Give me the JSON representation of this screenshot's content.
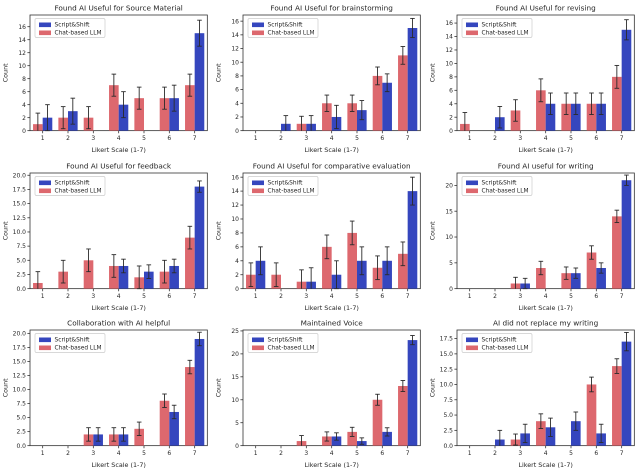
{
  "figure": {
    "xlabel": "Likert Scale (1-7)",
    "ylabel": "Count",
    "background": "#ffffff"
  },
  "colors": {
    "script_shift": "#3546be",
    "chat_llm": "#dd686e",
    "error_bar": "#2b2b2b",
    "axis": "#333333",
    "legend_border": "#cccccc"
  },
  "legend": {
    "entries": [
      "Script&Shift",
      "Chat-based LLM"
    ]
  },
  "chart_data": [
    {
      "type": "bar",
      "title": "Found AI Useful for Source Material",
      "xlabel": "Likert Scale (1-7)",
      "ylabel": "Count",
      "categories": [
        "1",
        "2",
        "3",
        "4",
        "5",
        "6",
        "7"
      ],
      "ylim": [
        0,
        17.8
      ],
      "yticks": [
        0,
        2,
        4,
        6,
        8,
        10,
        12,
        14,
        16
      ],
      "ytick_decimals": 0,
      "series": [
        {
          "name": "Script&Shift",
          "slot": 1,
          "values": [
            2,
            3,
            0,
            4,
            0,
            5,
            15
          ],
          "errors": [
            2,
            2,
            0,
            2,
            0,
            2,
            2
          ]
        },
        {
          "name": "Chat-based LLM",
          "slot": 0,
          "values": [
            1,
            2,
            2,
            7,
            5,
            5,
            7
          ],
          "errors": [
            1.7,
            1.7,
            1.7,
            1.7,
            1.7,
            1.7,
            1.7
          ]
        }
      ]
    },
    {
      "type": "bar",
      "title": "Found AI Useful for brainstorming",
      "xlabel": "Likert Scale (1-7)",
      "ylabel": "Count",
      "categories": [
        "1",
        "2",
        "3",
        "4",
        "5",
        "6",
        "7"
      ],
      "ylim": [
        0,
        16.9
      ],
      "yticks": [
        0,
        2,
        4,
        6,
        8,
        10,
        12,
        14,
        16
      ],
      "ytick_decimals": 0,
      "series": [
        {
          "name": "Script&Shift",
          "slot": 1,
          "values": [
            0,
            1,
            1,
            2,
            3,
            7,
            15
          ],
          "errors": [
            0,
            1.2,
            1.2,
            1.7,
            1.4,
            1.3,
            1.4
          ]
        },
        {
          "name": "Chat-based LLM",
          "slot": 0,
          "values": [
            0,
            0,
            1,
            4,
            4,
            8,
            11
          ],
          "errors": [
            0,
            0,
            1.1,
            1.2,
            1.2,
            1.3,
            1.3
          ]
        }
      ]
    },
    {
      "type": "bar",
      "title": "Found AI Useful for revising",
      "xlabel": "Likert Scale (1-7)",
      "ylabel": "Count",
      "categories": [
        "1",
        "2",
        "3",
        "4",
        "5",
        "6",
        "7"
      ],
      "ylim": [
        0,
        17.2
      ],
      "yticks": [
        0,
        2,
        4,
        6,
        8,
        10,
        12,
        14,
        16
      ],
      "ytick_decimals": 0,
      "series": [
        {
          "name": "Script&Shift",
          "slot": 1,
          "values": [
            0,
            2,
            0,
            4,
            4,
            4,
            15
          ],
          "errors": [
            0,
            1.6,
            0,
            1.6,
            1.6,
            1.6,
            1.5
          ]
        },
        {
          "name": "Chat-based LLM",
          "slot": 0,
          "values": [
            1,
            0,
            3,
            6,
            4,
            4,
            8
          ],
          "errors": [
            1.7,
            0,
            1.6,
            1.7,
            1.6,
            1.6,
            1.7
          ]
        }
      ]
    },
    {
      "type": "bar",
      "title": "Found AI Useful for feedback",
      "xlabel": "Likert Scale (1-7)",
      "ylabel": "Count",
      "categories": [
        "1",
        "2",
        "3",
        "4",
        "5",
        "6",
        "7"
      ],
      "ylim": [
        0,
        20.4
      ],
      "yticks": [
        0,
        2.5,
        5,
        7.5,
        10,
        12.5,
        15,
        17.5,
        20
      ],
      "ytick_decimals": 1,
      "series": [
        {
          "name": "Script&Shift",
          "slot": 1,
          "values": [
            0,
            0,
            0,
            4,
            3,
            4,
            18
          ],
          "errors": [
            0,
            0,
            0,
            1.2,
            1.2,
            1.2,
            1
          ]
        },
        {
          "name": "Chat-based LLM",
          "slot": 0,
          "values": [
            1,
            3,
            5,
            4,
            2,
            3,
            9
          ],
          "errors": [
            2,
            2,
            2,
            2,
            2,
            2,
            2
          ]
        }
      ]
    },
    {
      "type": "bar",
      "title": "Found AI Useful for comparative evaluation",
      "xlabel": "Likert Scale (1-7)",
      "ylabel": "Count",
      "categories": [
        "1",
        "2",
        "3",
        "4",
        "5",
        "6",
        "7"
      ],
      "ylim": [
        0,
        16.6
      ],
      "yticks": [
        0,
        2,
        4,
        6,
        8,
        10,
        12,
        14,
        16
      ],
      "ytick_decimals": 0,
      "series": [
        {
          "name": "Script&Shift",
          "slot": 1,
          "values": [
            4,
            0,
            1,
            2,
            4,
            4,
            14
          ],
          "errors": [
            2,
            0,
            2,
            2,
            2,
            2,
            2
          ]
        },
        {
          "name": "Chat-based LLM",
          "slot": 0,
          "values": [
            2,
            2,
            1,
            6,
            8,
            3,
            5
          ],
          "errors": [
            1.7,
            1.7,
            1.7,
            1.7,
            1.7,
            1.7,
            1.7
          ]
        }
      ]
    },
    {
      "type": "bar",
      "title": "Found AI useful for writing",
      "xlabel": "Likert Scale (1-7)",
      "ylabel": "Count",
      "categories": [
        "1",
        "2",
        "3",
        "4",
        "5",
        "6",
        "7"
      ],
      "ylim": [
        0,
        22.4
      ],
      "yticks": [
        0,
        5,
        10,
        15,
        20
      ],
      "ytick_decimals": 0,
      "series": [
        {
          "name": "Script&Shift",
          "slot": 1,
          "values": [
            0,
            0,
            1,
            0,
            3,
            4,
            21
          ],
          "errors": [
            0,
            0,
            1,
            0,
            1,
            1,
            1
          ]
        },
        {
          "name": "Chat-based LLM",
          "slot": 0,
          "values": [
            0,
            0,
            1,
            4,
            3,
            7,
            14
          ],
          "errors": [
            0,
            0,
            1.2,
            1.3,
            1.2,
            1.3,
            1.2
          ]
        }
      ]
    },
    {
      "type": "bar",
      "title": "Collaboration with AI helpful",
      "xlabel": "Likert Scale (1-7)",
      "ylabel": "Count",
      "categories": [
        "1",
        "2",
        "3",
        "4",
        "5",
        "6",
        "7"
      ],
      "ylim": [
        0,
        20.6
      ],
      "yticks": [
        0,
        2.5,
        5,
        7.5,
        10,
        12.5,
        15,
        17.5,
        20
      ],
      "ytick_decimals": 1,
      "series": [
        {
          "name": "Script&Shift",
          "slot": 1,
          "values": [
            0,
            0,
            2,
            2,
            0,
            6,
            19
          ],
          "errors": [
            0,
            0,
            1.2,
            1.2,
            0,
            1.2,
            1.2
          ]
        },
        {
          "name": "Chat-based LLM",
          "slot": 0,
          "values": [
            0,
            0,
            2,
            2,
            3,
            8,
            14
          ],
          "errors": [
            0,
            0,
            1.2,
            1.2,
            1.2,
            1.2,
            1.2
          ]
        }
      ]
    },
    {
      "type": "bar",
      "title": "Maintained Voice",
      "xlabel": "Likert Scale (1-7)",
      "ylabel": "Count",
      "categories": [
        "1",
        "2",
        "3",
        "4",
        "5",
        "6",
        "7"
      ],
      "ylim": [
        0,
        25.2
      ],
      "yticks": [
        0,
        5,
        10,
        15,
        20,
        25
      ],
      "ytick_decimals": 0,
      "series": [
        {
          "name": "Script&Shift",
          "slot": 1,
          "values": [
            0,
            0,
            0,
            2,
            1,
            3,
            23
          ],
          "errors": [
            0,
            0,
            0,
            0.8,
            0.7,
            0.9,
            1
          ]
        },
        {
          "name": "Chat-based LLM",
          "slot": 0,
          "values": [
            0,
            0,
            1,
            2,
            3,
            10,
            13
          ],
          "errors": [
            0,
            0,
            1.2,
            1,
            1,
            1.2,
            1.2
          ]
        }
      ]
    },
    {
      "type": "bar",
      "title": "AI did not replace my writing",
      "xlabel": "Likert Scale (1-7)",
      "ylabel": "Count",
      "categories": [
        "1",
        "2",
        "3",
        "4",
        "5",
        "6",
        "7"
      ],
      "ylim": [
        0,
        18.9
      ],
      "yticks": [
        0,
        2.5,
        5,
        7.5,
        10,
        12.5,
        15,
        17.5
      ],
      "ytick_decimals": 1,
      "series": [
        {
          "name": "Script&Shift",
          "slot": 1,
          "values": [
            0,
            1,
            2,
            3,
            4,
            2,
            17
          ],
          "errors": [
            0,
            1.5,
            1.5,
            1.5,
            1.5,
            1.5,
            1.5
          ]
        },
        {
          "name": "Chat-based LLM",
          "slot": 0,
          "values": [
            0,
            0,
            1,
            4,
            0,
            10,
            13
          ],
          "errors": [
            0,
            0,
            0.9,
            1.2,
            0,
            1.2,
            1.2
          ]
        }
      ]
    }
  ]
}
